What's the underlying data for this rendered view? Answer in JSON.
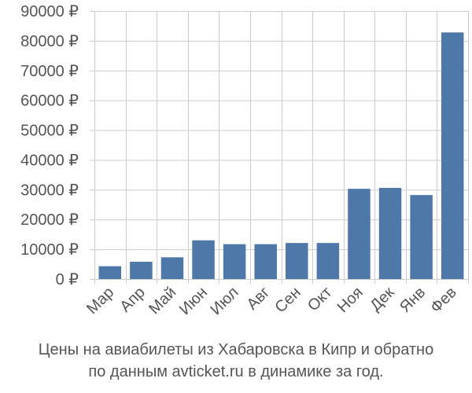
{
  "chart_data": {
    "type": "bar",
    "categories": [
      "Мар",
      "Апр",
      "Май",
      "Июн",
      "Июл",
      "Авг",
      "Сен",
      "Окт",
      "Ноя",
      "Дек",
      "Янв",
      "Фев"
    ],
    "values": [
      4300,
      5800,
      7300,
      13000,
      11700,
      11700,
      12100,
      12100,
      30300,
      30600,
      28200,
      82800
    ],
    "ylim": [
      0,
      90000
    ],
    "yticks": [
      0,
      10000,
      20000,
      30000,
      40000,
      50000,
      60000,
      70000,
      80000,
      90000
    ],
    "ytick_labels": [
      "0 ₽",
      "10000 ₽",
      "20000 ₽",
      "30000 ₽",
      "40000 ₽",
      "50000 ₽",
      "60000 ₽",
      "70000 ₽",
      "80000 ₽",
      "90000 ₽"
    ],
    "grid": true,
    "bar_color": "#4e78a8",
    "grid_color": "#cccccc",
    "caption_line1": "Цены на авиабилеты из Хабаровска в Кипр и обратно",
    "caption_line2": "по данным avticket.ru в динамике за год."
  }
}
